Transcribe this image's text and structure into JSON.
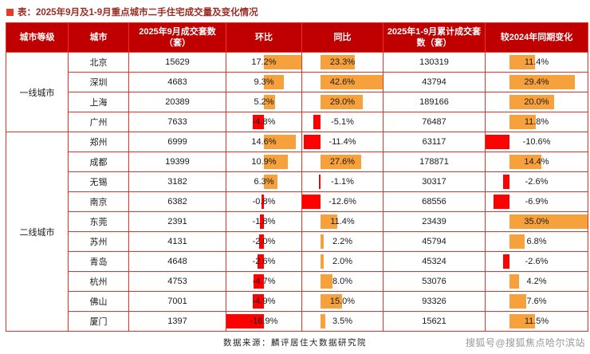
{
  "page": {
    "title": "表：2025年9月及1-9月重点城市二手住宅成交量及变化情况",
    "source_note": "数据来源：麟评居住大数据研究院",
    "watermark": "搜狐号@搜狐焦点哈尔滨站"
  },
  "colors": {
    "header_bg": "#c00000",
    "grid_line": "#ee3124",
    "title_text": "#9c2b21",
    "bullet": "#e8392b",
    "positive_bar": "#f6a13b",
    "negative_bar": "#fe0000"
  },
  "chart_data": {
    "type": "table",
    "title": "2025年9月及1-9月重点城市二手住宅成交量及变化情况",
    "columns": [
      "城市等级",
      "城市",
      "2025年9月成交套数（套）",
      "环比",
      "同比",
      "2025年1-9月累计成交套数（套）",
      "较2024年同期变化"
    ],
    "bar_columns": [
      "环比",
      "同比",
      "较2024年同期变化"
    ],
    "tier_groups": [
      {
        "tier": "一线城市",
        "cities": [
          {
            "city": "北京",
            "sep_units": 15629,
            "mom_pct": 17.2,
            "yoy_pct": 23.3,
            "cum_units": 130319,
            "vs_2024_pct": 11.4
          },
          {
            "city": "深圳",
            "sep_units": 4683,
            "mom_pct": 9.3,
            "yoy_pct": 42.6,
            "cum_units": 43794,
            "vs_2024_pct": 29.4
          },
          {
            "city": "上海",
            "sep_units": 20389,
            "mom_pct": 5.2,
            "yoy_pct": 29.0,
            "cum_units": 189166,
            "vs_2024_pct": 20.0
          },
          {
            "city": "广州",
            "sep_units": 7633,
            "mom_pct": -4.8,
            "yoy_pct": -5.1,
            "cum_units": 76487,
            "vs_2024_pct": 11.8
          }
        ]
      },
      {
        "tier": "二线城市",
        "cities": [
          {
            "city": "郑州",
            "sep_units": 6999,
            "mom_pct": 14.6,
            "yoy_pct": -11.4,
            "cum_units": 63117,
            "vs_2024_pct": -10.6
          },
          {
            "city": "成都",
            "sep_units": 19399,
            "mom_pct": 10.9,
            "yoy_pct": 27.6,
            "cum_units": 178871,
            "vs_2024_pct": 14.4
          },
          {
            "city": "无锡",
            "sep_units": 3182,
            "mom_pct": 6.3,
            "yoy_pct": -1.1,
            "cum_units": 30317,
            "vs_2024_pct": -2.6
          },
          {
            "city": "南京",
            "sep_units": 6382,
            "mom_pct": -0.8,
            "yoy_pct": -12.6,
            "cum_units": 68556,
            "vs_2024_pct": -6.9
          },
          {
            "city": "东莞",
            "sep_units": 2391,
            "mom_pct": -1.8,
            "yoy_pct": 11.4,
            "cum_units": 23439,
            "vs_2024_pct": 35.0
          },
          {
            "city": "苏州",
            "sep_units": 4131,
            "mom_pct": -2.0,
            "yoy_pct": 2.2,
            "cum_units": 45794,
            "vs_2024_pct": 6.8
          },
          {
            "city": "青岛",
            "sep_units": 4648,
            "mom_pct": -2.6,
            "yoy_pct": 2.0,
            "cum_units": 45324,
            "vs_2024_pct": -2.6
          },
          {
            "city": "杭州",
            "sep_units": 4753,
            "mom_pct": -4.7,
            "yoy_pct": 8.0,
            "cum_units": 53076,
            "vs_2024_pct": 4.2
          },
          {
            "city": "佛山",
            "sep_units": 7001,
            "mom_pct": -4.9,
            "yoy_pct": 15.0,
            "cum_units": 93326,
            "vs_2024_pct": 7.6
          },
          {
            "city": "厦门",
            "sep_units": 1397,
            "mom_pct": -16.9,
            "yoy_pct": 3.5,
            "cum_units": 15621,
            "vs_2024_pct": 11.5
          }
        ]
      }
    ]
  }
}
